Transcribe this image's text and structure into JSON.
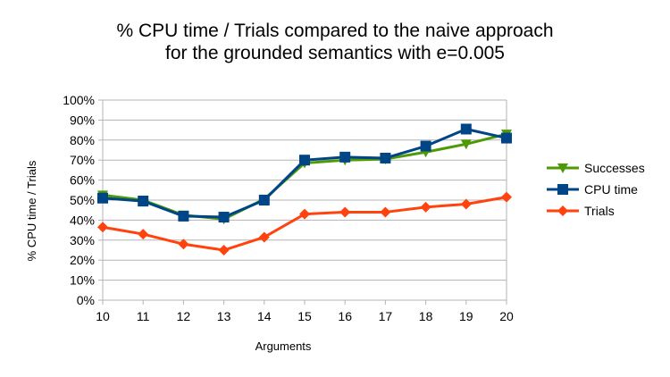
{
  "chart_data": {
    "type": "line",
    "title_line1": "% CPU time / Trials compared to the naive approach",
    "title_line2": "for the grounded semantics with e=0.005",
    "xlabel": "Arguments",
    "ylabel": "% CPU time / Trials",
    "x": [
      10,
      11,
      12,
      13,
      14,
      15,
      16,
      17,
      18,
      19,
      20
    ],
    "x_tick_labels": [
      "10",
      "11",
      "12",
      "13",
      "14",
      "15",
      "16",
      "17",
      "18",
      "19",
      "20"
    ],
    "ylim": [
      0,
      100
    ],
    "y_tick_values": [
      0,
      10,
      20,
      30,
      40,
      50,
      60,
      70,
      80,
      90,
      100
    ],
    "y_tick_labels": [
      "0%",
      "10%",
      "20%",
      "30%",
      "40%",
      "50%",
      "60%",
      "70%",
      "80%",
      "90%",
      "100%"
    ],
    "grid": true,
    "legend_position": "right",
    "series": [
      {
        "name": "Successes",
        "color": "#4e9a06",
        "marker": "triangle-down",
        "values": [
          52.5,
          50,
          42.5,
          40.5,
          50.5,
          68.5,
          70,
          70.5,
          74,
          78,
          83
        ]
      },
      {
        "name": "CPU time",
        "color": "#004586",
        "marker": "square",
        "values": [
          51,
          49.5,
          42,
          41.5,
          50,
          70,
          71.5,
          71,
          77,
          85.5,
          81
        ]
      },
      {
        "name": "Trials",
        "color": "#ff420e",
        "marker": "diamond",
        "values": [
          36.5,
          33,
          28,
          25,
          31.5,
          43,
          44,
          44,
          46.5,
          48,
          51.5
        ]
      }
    ]
  }
}
